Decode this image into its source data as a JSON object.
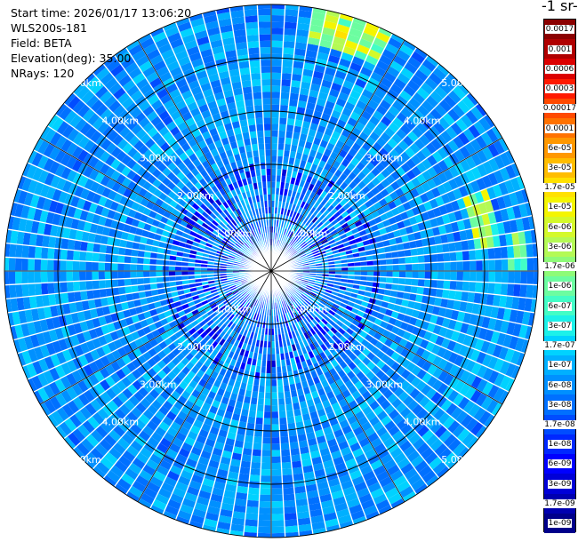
{
  "header": {
    "start_time": "Start time: 2026/01/17 13:06:20",
    "instrument": "WLS200s-181",
    "field": "Field: BETA",
    "elevation": "Elevation(deg): 35.00",
    "nrays": "NRays: 120"
  },
  "colorbar": {
    "units_label": "-1 sr-",
    "labels": [
      "0.0017",
      "0.001",
      "0.0006",
      "0.0003",
      "0.00017",
      "0.0001",
      "6e-05",
      "3e-05",
      "1.7e-05",
      "1e-05",
      "6e-06",
      "3e-06",
      "1.7e-06",
      "1e-06",
      "6e-07",
      "3e-07",
      "1.7e-07",
      "1e-07",
      "6e-08",
      "3e-08",
      "1.7e-08",
      "1e-08",
      "6e-09",
      "3e-09",
      "1.7e-09",
      "1e-09"
    ],
    "colors": [
      "#8b0000",
      "#b00000",
      "#dc0000",
      "#ff1a00",
      "#ff4a00",
      "#ff7200",
      "#ff9800",
      "#ffbd00",
      "#ffe100",
      "#f4f500",
      "#d4f92b",
      "#b4fa55",
      "#8efb78",
      "#6cfda0",
      "#43fdc6",
      "#1cf1e9",
      "#00d2ff",
      "#00b0ff",
      "#0090ff",
      "#0070ff",
      "#004cff",
      "#0028ff",
      "#0000ff",
      "#0000d8",
      "#0000b0",
      "#00008b"
    ]
  },
  "range_rings": {
    "labels": [
      "1.00km",
      "2.00km",
      "3.00km",
      "4.00km",
      "5.00km"
    ]
  },
  "chart_data": {
    "type": "heatmap",
    "projection": "polar PPI",
    "field": "BETA",
    "elevation_deg": 35.0,
    "n_rays": 120,
    "max_range_km": 5.0,
    "ring_ranges_km": [
      1,
      2,
      3,
      4,
      5
    ],
    "color_scale": "log",
    "scale_min": 1e-09,
    "scale_max": 0.0017,
    "background_level": 6e-08,
    "features": [
      {
        "description": "enhanced backscatter near far edge",
        "azimuth_range_deg": [
          8,
          28
        ],
        "range_km": [
          4.3,
          5.0
        ],
        "level_max": 1.7e-05
      },
      {
        "description": "enhanced backscatter east side",
        "azimuth_range_deg": [
          70,
          84
        ],
        "range_km": [
          3.8,
          4.3
        ],
        "level_max": 1e-05
      },
      {
        "description": "enhanced backscatter east side",
        "azimuth_range_deg": [
          80,
          90
        ],
        "range_km": [
          4.5,
          4.8
        ],
        "level_max": 3e-06
      }
    ]
  }
}
